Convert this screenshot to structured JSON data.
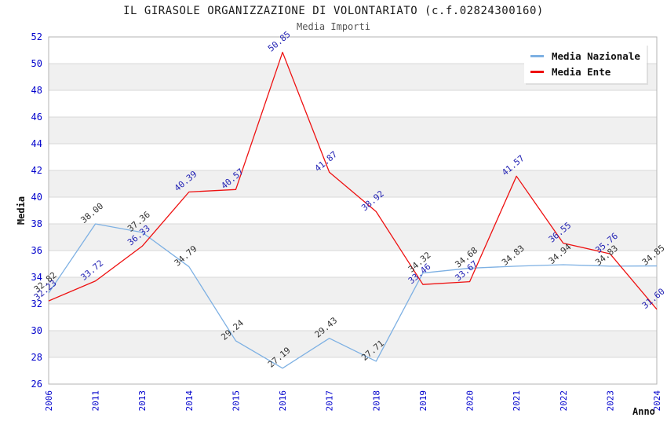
{
  "title": "IL GIRASOLE ORGANIZZAZIONE DI VOLONTARIATO (c.f.02824300160)",
  "subtitle": "Media Importi",
  "axes": {
    "x_title": "Anno",
    "y_title": "Media",
    "y_ticks": [
      26,
      28,
      30,
      32,
      34,
      36,
      38,
      40,
      42,
      44,
      46,
      48,
      50,
      52
    ]
  },
  "legend": {
    "items": [
      {
        "label": "Media Nazionale"
      },
      {
        "label": "Media Ente"
      }
    ]
  },
  "theme": {
    "tick_label_color": "#0000cc",
    "band_gray": "#f0f0f0",
    "band_white": "#ffffff",
    "gridline_color": "#d9d9d9",
    "plot_border_color": "#b3b3b3",
    "title_color": "#1a1a1a",
    "subtitle_color": "#555555"
  },
  "chart_data": {
    "type": "line",
    "title": "Media Importi",
    "xlabel": "Anno",
    "ylabel": "Media",
    "ylim": [
      26,
      52
    ],
    "y_tick_step": 2,
    "grid": true,
    "legend_position": "top-right",
    "categories": [
      "2006",
      "2011",
      "2013",
      "2014",
      "2015",
      "2016",
      "2017",
      "2018",
      "2019",
      "2020",
      "2021",
      "2022",
      "2023",
      "2024"
    ],
    "series": [
      {
        "name": "Media Nazionale",
        "color": "#7db0e3",
        "label_color": "#333333",
        "values": [
          32.82,
          38.0,
          37.36,
          34.79,
          29.24,
          27.19,
          29.43,
          27.71,
          34.32,
          34.68,
          34.83,
          34.94,
          34.83,
          34.85
        ]
      },
      {
        "name": "Media Ente",
        "color": "#ee1111",
        "label_color": "#2323b4",
        "values": [
          32.23,
          33.72,
          36.33,
          40.39,
          40.57,
          50.85,
          41.87,
          38.92,
          33.46,
          33.67,
          41.57,
          36.55,
          35.76,
          31.6
        ]
      }
    ]
  }
}
